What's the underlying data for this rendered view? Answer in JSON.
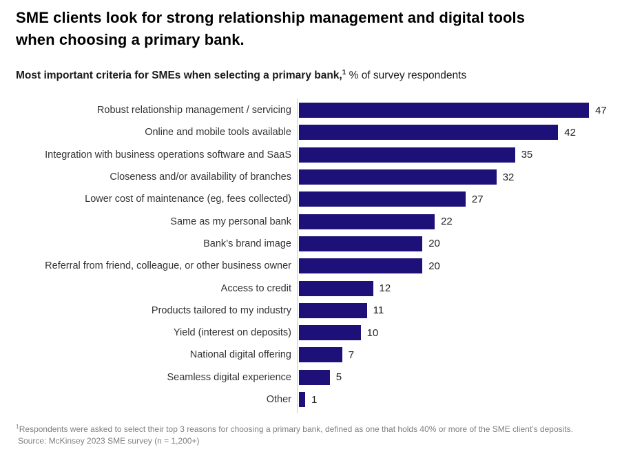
{
  "header": {
    "title_line1": "SME clients look for strong relationship management and digital tools",
    "title_line2": "when choosing a primary bank.",
    "subtitle_bold": "Most important criteria for SMEs when selecting a primary bank,",
    "subtitle_sup": "1",
    "subtitle_regular": " % of survey respondents"
  },
  "chart_data": {
    "type": "bar",
    "orientation": "horizontal",
    "title": "Most important criteria for SMEs when selecting a primary bank, % of survey respondents",
    "xlabel": "",
    "ylabel": "",
    "xlim": [
      0,
      50
    ],
    "grid": false,
    "legend": false,
    "bar_color": "#1e1079",
    "axis_line_color": "#cccccc",
    "categories": [
      "Robust relationship management / servicing",
      "Online and mobile tools available",
      "Integration with business operations software and SaaS",
      "Closeness and/or availability of branches",
      "Lower cost of maintenance (eg, fees collected)",
      "Same as my personal bank",
      "Bank’s brand image",
      "Referral from friend, colleague, or other business owner",
      "Access to credit",
      "Products tailored to my industry",
      "Yield (interest on deposits)",
      "National digital offering",
      "Seamless digital experience",
      "Other"
    ],
    "values": [
      47,
      42,
      35,
      32,
      27,
      22,
      20,
      20,
      12,
      11,
      10,
      7,
      5,
      1
    ]
  },
  "footnote": {
    "marker": "1",
    "text": "Respondents were asked to select their top 3 reasons for choosing a primary bank, defined as one that holds 40% or more of the SME client’s deposits.",
    "source": "Source: McKinsey 2023 SME survey (n = 1,200+)"
  }
}
